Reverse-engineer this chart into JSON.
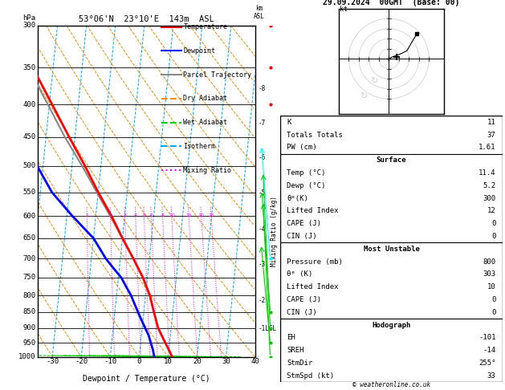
{
  "title_left": "53°06'N  23°10'E  143m  ASL",
  "title_right": "29.09.2024  00GMT  (Base: 00)",
  "xlabel": "Dewpoint / Temperature (°C)",
  "p_label_levels": [
    300,
    350,
    400,
    450,
    500,
    550,
    600,
    650,
    700,
    750,
    800,
    850,
    900,
    950,
    1000
  ],
  "x_min": -35,
  "x_max": 40,
  "x_ticks": [
    -30,
    -20,
    -10,
    0,
    10,
    20,
    30,
    40
  ],
  "skew_factor": 22.5,
  "temp_profile_p": [
    1000,
    975,
    950,
    925,
    900,
    875,
    850,
    825,
    800,
    775,
    750,
    725,
    700,
    650,
    600,
    550,
    500,
    450,
    400,
    350,
    300
  ],
  "temp_profile_T": [
    11.4,
    10.0,
    8.5,
    7.0,
    5.5,
    4.5,
    3.5,
    2.5,
    1.5,
    0.0,
    -1.5,
    -3.5,
    -5.5,
    -10.0,
    -14.5,
    -20.0,
    -25.5,
    -32.0,
    -39.0,
    -47.0,
    -55.0
  ],
  "dewp_profile_p": [
    1000,
    975,
    950,
    925,
    900,
    875,
    850,
    825,
    800,
    775,
    750,
    725,
    700,
    650,
    600,
    550,
    500,
    450,
    400,
    350,
    300
  ],
  "dewp_profile_T": [
    5.2,
    4.5,
    3.5,
    2.5,
    1.0,
    -0.5,
    -2.0,
    -3.5,
    -5.0,
    -7.0,
    -9.0,
    -12.0,
    -15.0,
    -20.0,
    -28.0,
    -36.0,
    -42.0,
    -46.0,
    -52.0,
    -57.0,
    -62.0
  ],
  "parcel_profile_p": [
    850,
    800,
    750,
    700,
    650,
    600,
    550,
    500,
    450,
    400,
    350,
    300
  ],
  "parcel_profile_T": [
    3.5,
    1.5,
    -1.5,
    -5.5,
    -10.0,
    -15.0,
    -20.5,
    -26.5,
    -33.5,
    -40.5,
    -48.5,
    -57.0
  ],
  "temp_color": "#ff0000",
  "dewp_color": "#0000ff",
  "parcel_color": "#888888",
  "isotherm_color": "#00aaff",
  "dry_adiabat_color": "#ff8800",
  "moist_adiabat_color": "#00cc00",
  "mixing_ratio_color": "#ff00ff",
  "legend_items": [
    {
      "label": "Temperature",
      "color": "#ff0000",
      "linestyle": "-"
    },
    {
      "label": "Dewpoint",
      "color": "#0000ff",
      "linestyle": "-"
    },
    {
      "label": "Parcel Trajectory",
      "color": "#888888",
      "linestyle": "-"
    },
    {
      "label": "Dry Adiabat",
      "color": "#ff8800",
      "linestyle": "--"
    },
    {
      "label": "Wet Adiabat",
      "color": "#00cc00",
      "linestyle": "--"
    },
    {
      "label": "Isotherm",
      "color": "#00aaff",
      "linestyle": "--"
    },
    {
      "label": "Mixing Ratio",
      "color": "#ff00ff",
      "linestyle": ":"
    }
  ],
  "km_ticks": [
    {
      "label": "8",
      "p": 378
    },
    {
      "label": "7",
      "p": 428
    },
    {
      "label": "6",
      "p": 485
    },
    {
      "label": "5",
      "p": 551
    },
    {
      "label": "4",
      "p": 628
    },
    {
      "label": "3",
      "p": 715
    },
    {
      "label": "2",
      "p": 814
    },
    {
      "label": "1LCL",
      "p": 903
    }
  ],
  "mixing_ratio_vals": [
    1,
    2,
    3,
    4,
    5,
    6,
    8,
    10,
    15,
    20,
    25
  ],
  "stats_K": 11,
  "stats_TT": 37,
  "stats_PW": 1.61,
  "surf_temp": 11.4,
  "surf_dewp": 5.2,
  "surf_thetaE": 300,
  "surf_li": 12,
  "surf_cape": 0,
  "surf_cin": 0,
  "mu_pres": 800,
  "mu_thetaE": 303,
  "mu_li": 10,
  "mu_cape": 0,
  "mu_cin": 0,
  "hodo_EH": -101,
  "hodo_SREH": -14,
  "hodo_StmDir": 255,
  "hodo_StmSpd": 33,
  "bg_color": "#ffffff"
}
